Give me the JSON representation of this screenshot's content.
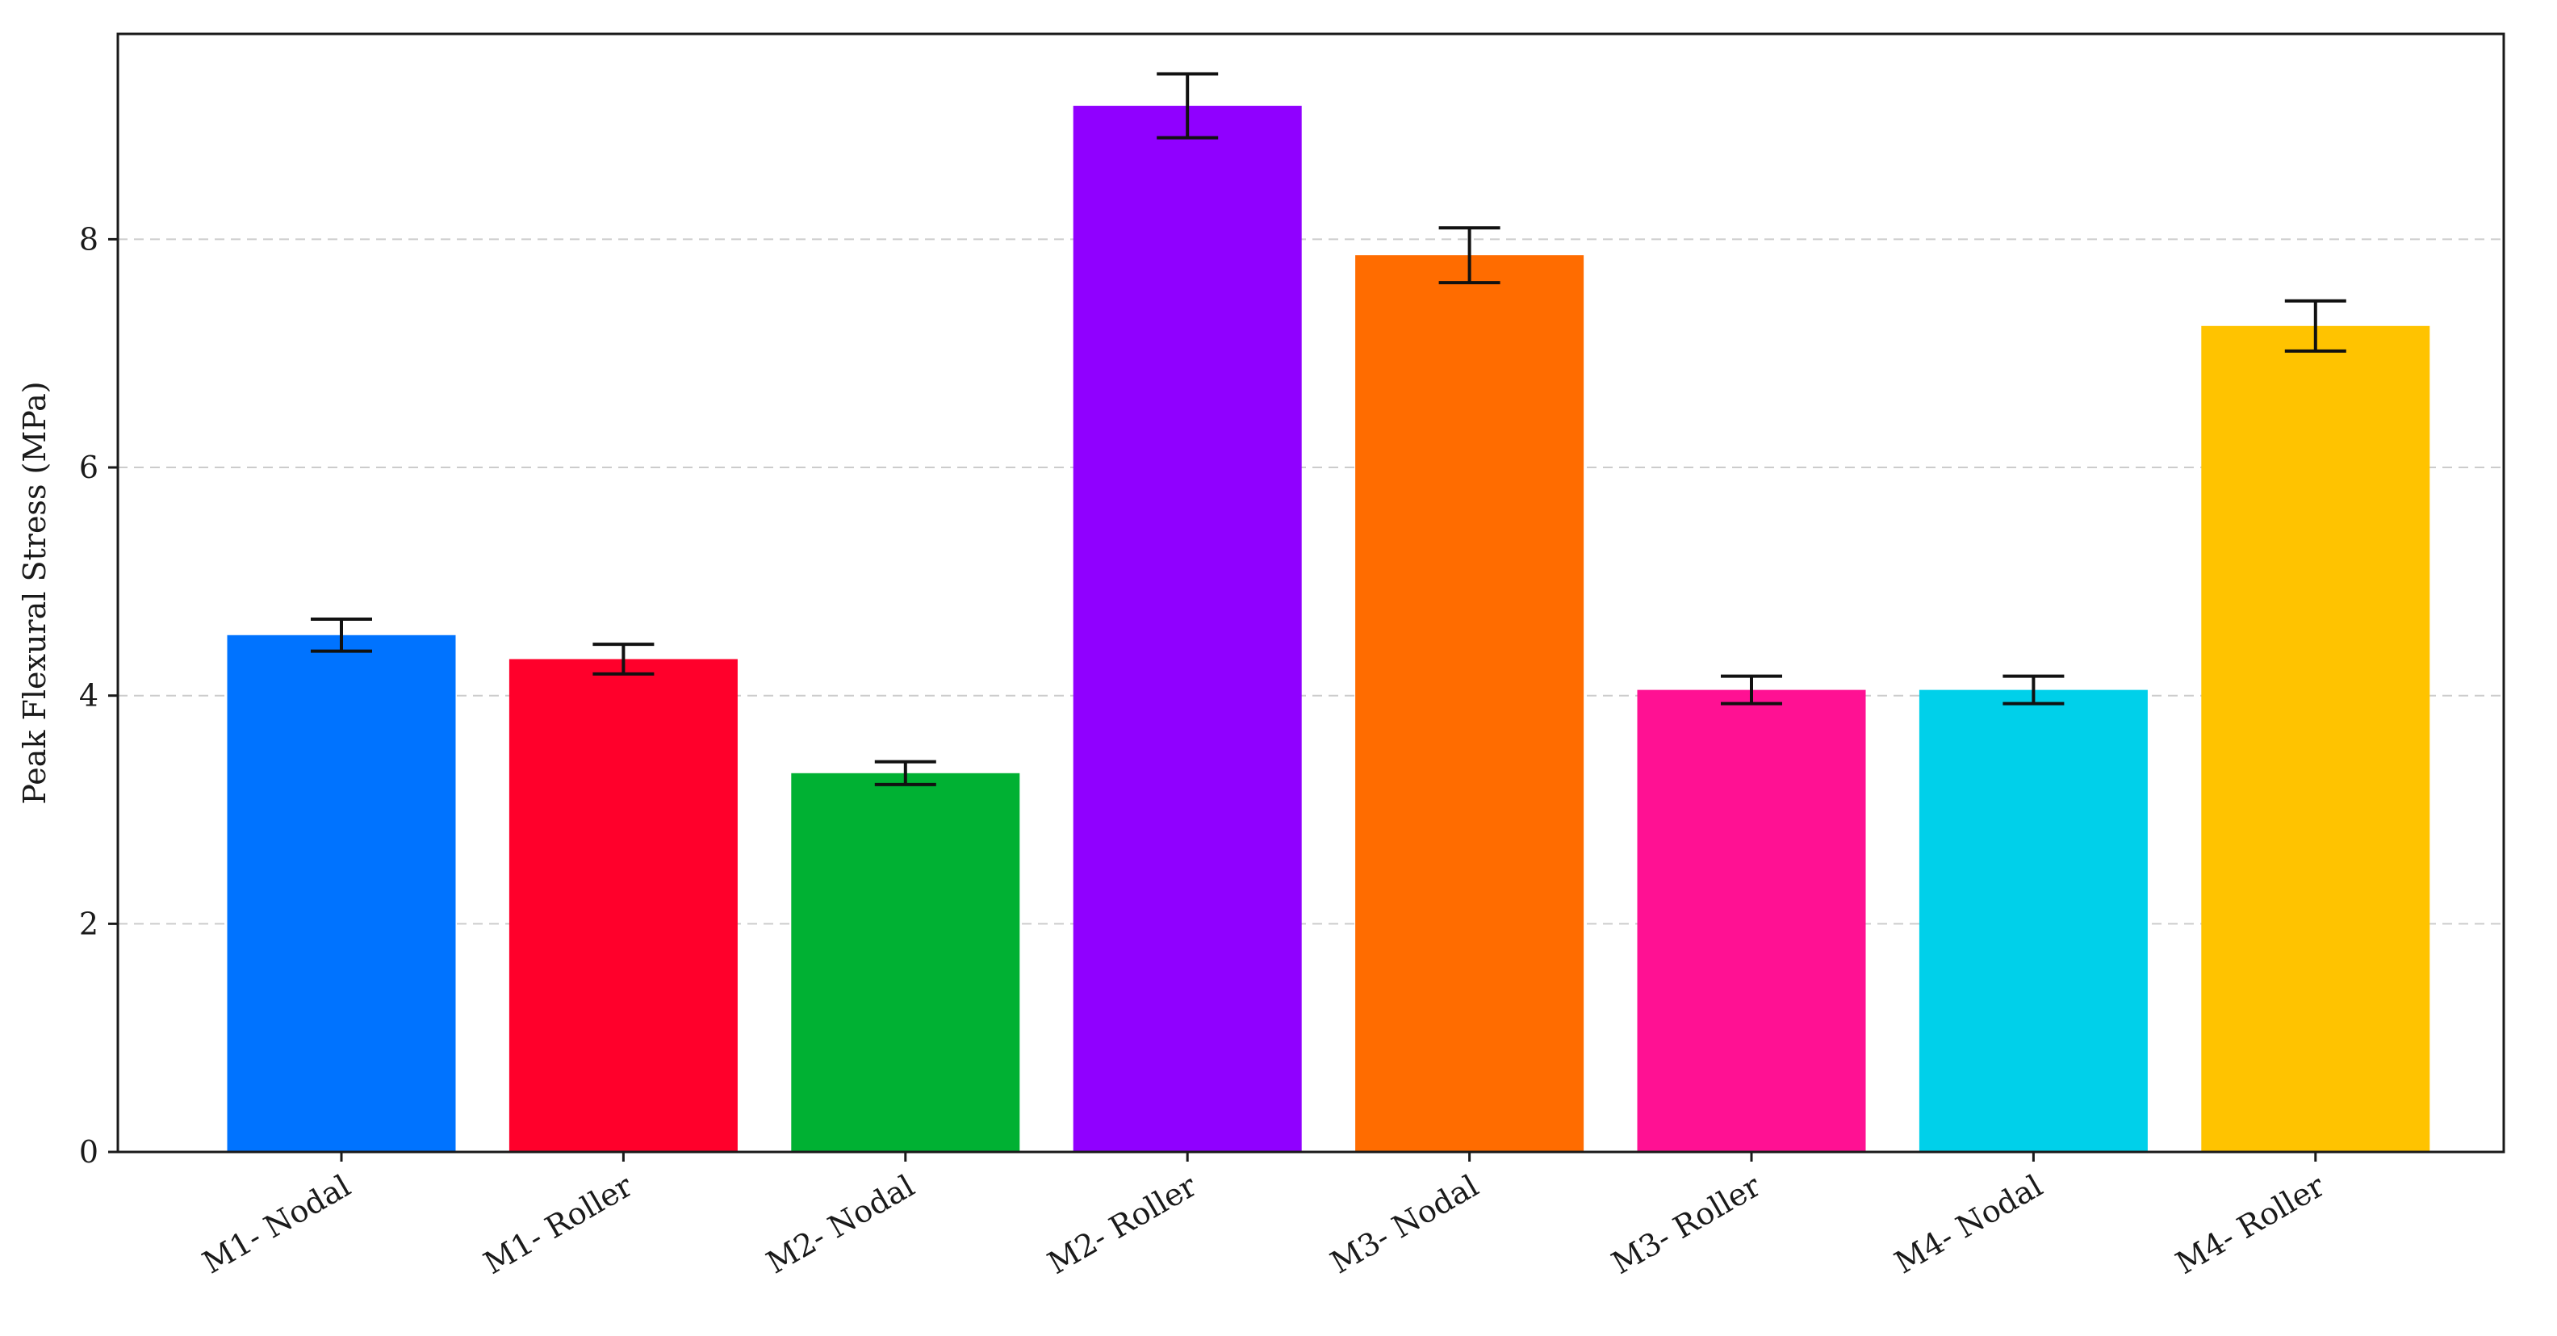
{
  "chart_data": {
    "type": "bar",
    "title": "",
    "xlabel": "",
    "ylabel": "Peak Flexural Stress (MPa)",
    "ylim": [
      0,
      9.8
    ],
    "yticks": [
      0,
      2,
      4,
      6,
      8
    ],
    "grid": "y-dashed",
    "categories": [
      "M1- Nodal",
      "M1- Roller",
      "M2- Nodal",
      "M2- Roller",
      "M3- Nodal",
      "M3- Roller",
      "M4- Nodal",
      "M4- Roller"
    ],
    "values": [
      4.53,
      4.32,
      3.32,
      9.17,
      7.86,
      4.05,
      4.05,
      7.24
    ],
    "errors": [
      0.14,
      0.13,
      0.1,
      0.28,
      0.24,
      0.12,
      0.12,
      0.22
    ],
    "colors": [
      "#0073ff",
      "#ff002b",
      "#00b133",
      "#9000ff",
      "#ff6c00",
      "#ff1193",
      "#00d0ea",
      "#ffc300"
    ]
  }
}
